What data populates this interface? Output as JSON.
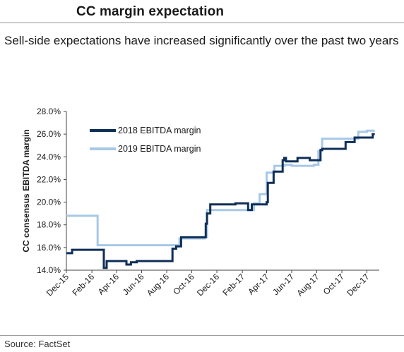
{
  "header": {
    "title": "CC margin expectation",
    "subtitle": "Sell-side expectations have increased significantly over the past two years"
  },
  "footer": {
    "source": "Source: FactSet"
  },
  "colors": {
    "series_2018": "#0f2f57",
    "series_2019": "#a7c8e6",
    "axis": "#444444",
    "text": "#1a1a1a"
  },
  "chart_data": {
    "type": "line",
    "title": "",
    "xlabel": "",
    "ylabel": "CC consensus EBITDA margin",
    "ylim": [
      0.14,
      0.28
    ],
    "yticks": [
      0.14,
      0.16,
      0.18,
      0.2,
      0.22,
      0.24,
      0.26,
      0.28
    ],
    "ytick_labels": [
      "14.0%",
      "16.0%",
      "18.0%",
      "20.0%",
      "22.0%",
      "24.0%",
      "26.0%",
      "28.0%"
    ],
    "xlim": [
      "2015-12-01",
      "2017-12-31"
    ],
    "xticks": [
      "2015-12-01",
      "2016-02-01",
      "2016-04-01",
      "2016-06-01",
      "2016-08-01",
      "2016-10-01",
      "2016-12-01",
      "2017-02-01",
      "2017-04-01",
      "2017-06-01",
      "2017-08-01",
      "2017-10-01",
      "2017-12-01"
    ],
    "xtick_labels": [
      "Dec-15",
      "Feb-16",
      "Apr-16",
      "Jun-16",
      "Aug-16",
      "Oct-16",
      "Dec-16",
      "Feb-17",
      "Apr-17",
      "Jun-17",
      "Aug-17",
      "Oct-17",
      "Dec-17"
    ],
    "grid": false,
    "legend_position": "top-left",
    "series": [
      {
        "name": "2018 EBITDA margin",
        "step": true,
        "points": [
          [
            "2015-12-01",
            0.155
          ],
          [
            "2015-12-15",
            0.158
          ],
          [
            "2016-03-01",
            0.142
          ],
          [
            "2016-03-08",
            0.148
          ],
          [
            "2016-04-25",
            0.145
          ],
          [
            "2016-05-06",
            0.147
          ],
          [
            "2016-05-20",
            0.148
          ],
          [
            "2016-08-15",
            0.159
          ],
          [
            "2016-08-24",
            0.161
          ],
          [
            "2016-09-05",
            0.169
          ],
          [
            "2016-11-04",
            0.181
          ],
          [
            "2016-11-07",
            0.19
          ],
          [
            "2016-11-15",
            0.198
          ],
          [
            "2017-01-15",
            0.199
          ],
          [
            "2017-02-15",
            0.193
          ],
          [
            "2017-02-24",
            0.198
          ],
          [
            "2017-04-01",
            0.2
          ],
          [
            "2017-04-04",
            0.217
          ],
          [
            "2017-04-18",
            0.227
          ],
          [
            "2017-05-10",
            0.237
          ],
          [
            "2017-05-14",
            0.239
          ],
          [
            "2017-05-18",
            0.236
          ],
          [
            "2017-06-15",
            0.239
          ],
          [
            "2017-07-15",
            0.237
          ],
          [
            "2017-08-10",
            0.246
          ],
          [
            "2017-08-14",
            0.247
          ],
          [
            "2017-10-10",
            0.253
          ],
          [
            "2017-11-01",
            0.257
          ],
          [
            "2017-12-15",
            0.26
          ],
          [
            "2017-12-20",
            0.26
          ]
        ]
      },
      {
        "name": "2019 EBITDA margin",
        "step": true,
        "points": [
          [
            "2015-12-01",
            0.188
          ],
          [
            "2015-12-08",
            0.188
          ],
          [
            "2016-02-15",
            0.162
          ],
          [
            "2016-06-01",
            0.162
          ],
          [
            "2016-09-01",
            0.168
          ],
          [
            "2016-11-01",
            0.169
          ],
          [
            "2016-11-07",
            0.193
          ],
          [
            "2017-02-15",
            0.193
          ],
          [
            "2017-03-01",
            0.199
          ],
          [
            "2017-03-15",
            0.207
          ],
          [
            "2017-04-01",
            0.226
          ],
          [
            "2017-04-20",
            0.232
          ],
          [
            "2017-05-15",
            0.233
          ],
          [
            "2017-06-01",
            0.232
          ],
          [
            "2017-07-25",
            0.233
          ],
          [
            "2017-08-05",
            0.245
          ],
          [
            "2017-08-14",
            0.256
          ],
          [
            "2017-11-10",
            0.262
          ],
          [
            "2017-12-01",
            0.263
          ],
          [
            "2017-12-20",
            0.263
          ]
        ]
      }
    ]
  }
}
